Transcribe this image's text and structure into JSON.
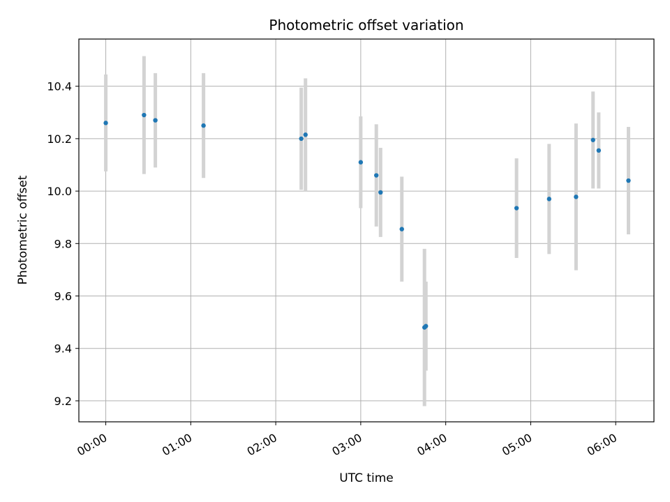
{
  "chart_data": {
    "type": "scatter",
    "title": "Photometric offset variation",
    "xlabel": "UTC time",
    "ylabel": "Photometric offset",
    "xlim": [
      "-00:19",
      "06:27"
    ],
    "ylim": [
      9.12,
      10.58
    ],
    "x_ticks": [
      "00:00",
      "01:00",
      "02:00",
      "03:00",
      "04:00",
      "05:00",
      "06:00"
    ],
    "y_ticks": [
      9.2,
      9.4,
      9.6,
      9.8,
      10.0,
      10.2,
      10.4
    ],
    "y_tick_labels": [
      "9.2",
      "9.4",
      "9.6",
      "9.8",
      "10.0",
      "10.2",
      "10.4"
    ],
    "grid": true,
    "series": [
      {
        "marker_color": "#1f77b4",
        "errorbar_color": "#d3d3d3",
        "points": [
          {
            "x": "00:00",
            "y": 10.26,
            "yerr": 0.185
          },
          {
            "x": "00:27",
            "y": 10.29,
            "yerr": 0.225
          },
          {
            "x": "00:35",
            "y": 10.27,
            "yerr": 0.18
          },
          {
            "x": "01:09",
            "y": 10.25,
            "yerr": 0.2
          },
          {
            "x": "02:18",
            "y": 10.2,
            "yerr": 0.195
          },
          {
            "x": "02:21",
            "y": 10.215,
            "yerr": 0.215
          },
          {
            "x": "03:00",
            "y": 10.11,
            "yerr": 0.175
          },
          {
            "x": "03:11",
            "y": 10.06,
            "yerr": 0.195
          },
          {
            "x": "03:14",
            "y": 9.995,
            "yerr": 0.17
          },
          {
            "x": "03:29",
            "y": 9.855,
            "yerr": 0.2
          },
          {
            "x": "03:45",
            "y": 9.48,
            "yerr": 0.3
          },
          {
            "x": "03:46",
            "y": 9.485,
            "yerr": 0.17
          },
          {
            "x": "04:50",
            "y": 9.935,
            "yerr": 0.19
          },
          {
            "x": "05:13",
            "y": 9.97,
            "yerr": 0.21
          },
          {
            "x": "05:32",
            "y": 9.978,
            "yerr": 0.28
          },
          {
            "x": "05:44",
            "y": 10.195,
            "yerr": 0.185
          },
          {
            "x": "05:48",
            "y": 10.155,
            "yerr": 0.145
          },
          {
            "x": "06:09",
            "y": 10.04,
            "yerr": 0.205
          }
        ]
      }
    ]
  }
}
